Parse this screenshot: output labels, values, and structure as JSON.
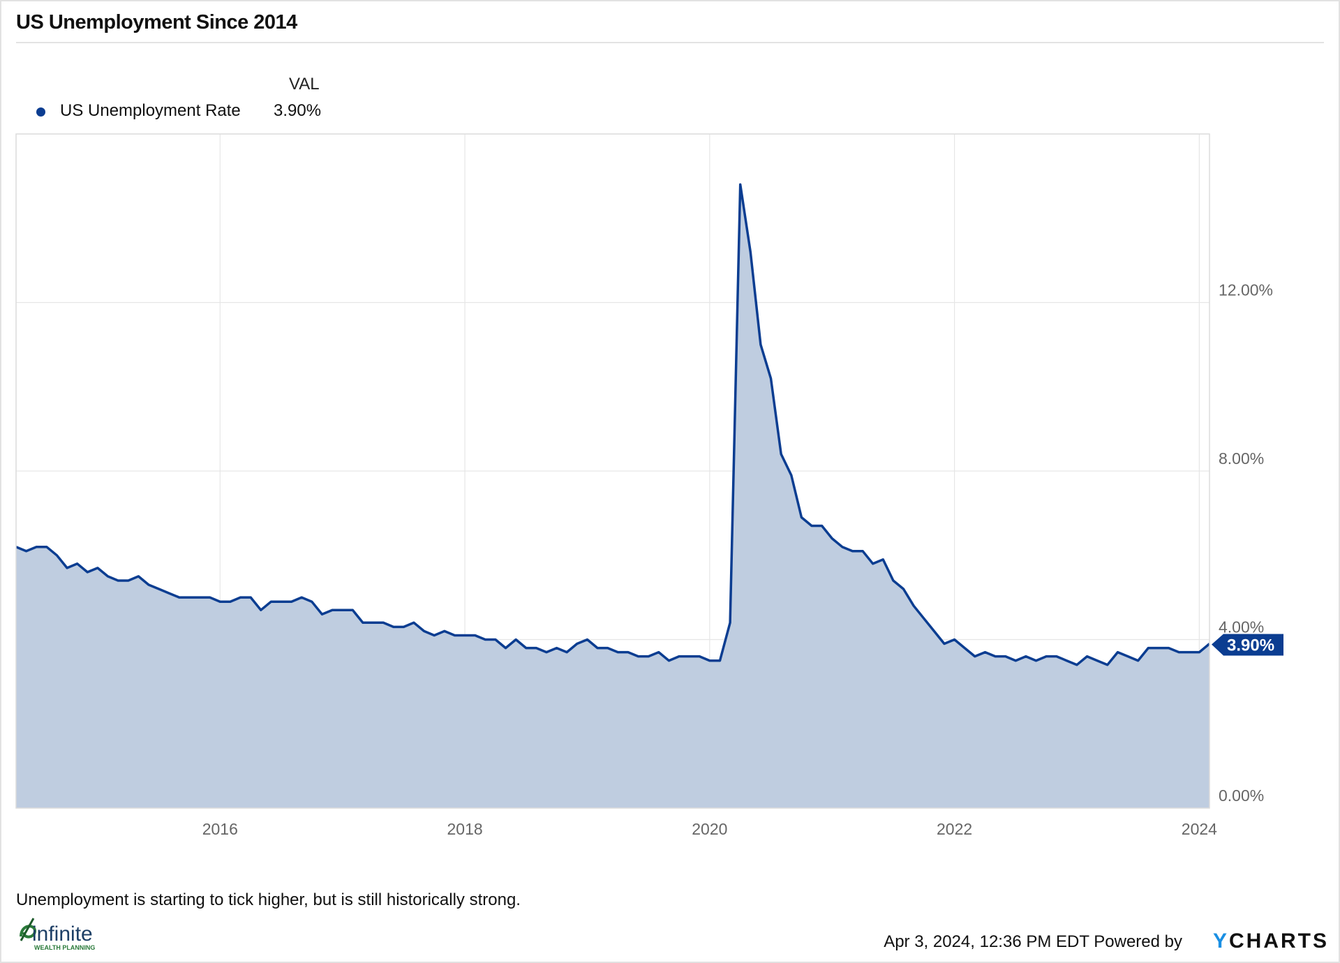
{
  "title": "US Unemployment Since 2014",
  "legend": {
    "header": "VAL",
    "items": [
      {
        "name": "US Unemployment Rate",
        "value": "3.90%",
        "color": "#0b3d91"
      }
    ]
  },
  "caption": "Unemployment is starting to tick higher, but is still historically strong.",
  "logo": {
    "name": "infinite",
    "sub": "WEALTH PLANNING"
  },
  "footer": {
    "timestamp": "Apr 3, 2024, 12:36 PM EDT",
    "powered_by": "Powered by",
    "brand_y": "Y",
    "brand_rest": "CHARTS"
  },
  "chart_data": {
    "type": "area",
    "title": "US Unemployment Since 2014",
    "xlabel": "",
    "ylabel": "",
    "x_ticks": [
      "2016",
      "2018",
      "2020",
      "2022",
      "2024"
    ],
    "y_ticks": [
      "0.00%",
      "4.00%",
      "8.00%",
      "12.00%"
    ],
    "ylim": [
      0,
      16
    ],
    "xlim": [
      "2014-05",
      "2024-02"
    ],
    "y_axis_side": "right",
    "grid": true,
    "line_color": "#0b3d91",
    "fill_color": "#bfcde0",
    "last_value_label": "3.90%",
    "series": [
      {
        "name": "US Unemployment Rate",
        "x": [
          "2014-05",
          "2014-06",
          "2014-07",
          "2014-08",
          "2014-09",
          "2014-10",
          "2014-11",
          "2014-12",
          "2015-01",
          "2015-02",
          "2015-03",
          "2015-04",
          "2015-05",
          "2015-06",
          "2015-07",
          "2015-08",
          "2015-09",
          "2015-10",
          "2015-11",
          "2015-12",
          "2016-01",
          "2016-02",
          "2016-03",
          "2016-04",
          "2016-05",
          "2016-06",
          "2016-07",
          "2016-08",
          "2016-09",
          "2016-10",
          "2016-11",
          "2016-12",
          "2017-01",
          "2017-02",
          "2017-03",
          "2017-04",
          "2017-05",
          "2017-06",
          "2017-07",
          "2017-08",
          "2017-09",
          "2017-10",
          "2017-11",
          "2017-12",
          "2018-01",
          "2018-02",
          "2018-03",
          "2018-04",
          "2018-05",
          "2018-06",
          "2018-07",
          "2018-08",
          "2018-09",
          "2018-10",
          "2018-11",
          "2018-12",
          "2019-01",
          "2019-02",
          "2019-03",
          "2019-04",
          "2019-05",
          "2019-06",
          "2019-07",
          "2019-08",
          "2019-09",
          "2019-10",
          "2019-11",
          "2019-12",
          "2020-01",
          "2020-02",
          "2020-03",
          "2020-04",
          "2020-05",
          "2020-06",
          "2020-07",
          "2020-08",
          "2020-09",
          "2020-10",
          "2020-11",
          "2020-12",
          "2021-01",
          "2021-02",
          "2021-03",
          "2021-04",
          "2021-05",
          "2021-06",
          "2021-07",
          "2021-08",
          "2021-09",
          "2021-10",
          "2021-11",
          "2021-12",
          "2022-01",
          "2022-02",
          "2022-03",
          "2022-04",
          "2022-05",
          "2022-06",
          "2022-07",
          "2022-08",
          "2022-09",
          "2022-10",
          "2022-11",
          "2022-12",
          "2023-01",
          "2023-02",
          "2023-03",
          "2023-04",
          "2023-05",
          "2023-06",
          "2023-07",
          "2023-08",
          "2023-09",
          "2023-10",
          "2023-11",
          "2023-12",
          "2024-01",
          "2024-02"
        ],
        "values": [
          6.2,
          6.1,
          6.2,
          6.2,
          6.0,
          5.7,
          5.8,
          5.6,
          5.7,
          5.5,
          5.4,
          5.4,
          5.5,
          5.3,
          5.2,
          5.1,
          5.0,
          5.0,
          5.0,
          5.0,
          4.9,
          4.9,
          5.0,
          5.0,
          4.7,
          4.9,
          4.9,
          4.9,
          5.0,
          4.9,
          4.6,
          4.7,
          4.7,
          4.7,
          4.4,
          4.4,
          4.4,
          4.3,
          4.3,
          4.4,
          4.2,
          4.1,
          4.2,
          4.1,
          4.1,
          4.1,
          4.0,
          4.0,
          3.8,
          4.0,
          3.8,
          3.8,
          3.7,
          3.8,
          3.7,
          3.9,
          4.0,
          3.8,
          3.8,
          3.7,
          3.7,
          3.6,
          3.6,
          3.7,
          3.5,
          3.6,
          3.6,
          3.6,
          3.5,
          3.5,
          4.4,
          14.8,
          13.2,
          11.0,
          10.2,
          8.4,
          7.9,
          6.9,
          6.7,
          6.7,
          6.4,
          6.2,
          6.1,
          6.1,
          5.8,
          5.9,
          5.4,
          5.2,
          4.8,
          4.5,
          4.2,
          3.9,
          4.0,
          3.8,
          3.6,
          3.7,
          3.6,
          3.6,
          3.5,
          3.6,
          3.5,
          3.6,
          3.6,
          3.5,
          3.4,
          3.6,
          3.5,
          3.4,
          3.7,
          3.6,
          3.5,
          3.8,
          3.8,
          3.8,
          3.7,
          3.7,
          3.7,
          3.9
        ]
      }
    ]
  }
}
